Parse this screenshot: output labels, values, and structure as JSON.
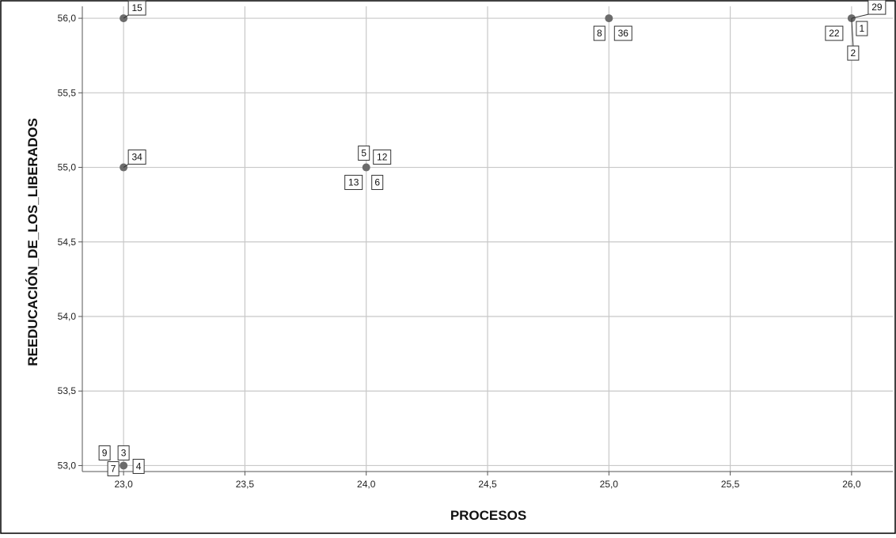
{
  "chart_data": {
    "type": "scatter",
    "title": "",
    "xlabel": "PROCESOS",
    "ylabel": "REEDUCACIÓN_DE_LOS_LIBERADOS",
    "xlim": [
      22.83,
      26.17
    ],
    "ylim": [
      52.96,
      56.08
    ],
    "x_ticks": [
      23.0,
      23.5,
      24.0,
      24.5,
      25.0,
      25.5,
      26.0
    ],
    "x_tick_labels": [
      "23,0",
      "23,5",
      "24,0",
      "24,5",
      "25,0",
      "25,5",
      "26,0"
    ],
    "y_ticks": [
      53.0,
      53.5,
      54.0,
      54.5,
      55.0,
      55.5,
      56.0
    ],
    "y_tick_labels": [
      "53,0",
      "53,5",
      "54,0",
      "54,5",
      "55,0",
      "55,5",
      "56,0"
    ],
    "grid": true,
    "points": [
      {
        "x": 23,
        "y": 56,
        "labels": [
          "15"
        ]
      },
      {
        "x": 23,
        "y": 55,
        "labels": [
          "34"
        ]
      },
      {
        "x": 23,
        "y": 53,
        "labels": [
          "9",
          "3",
          "7",
          "4"
        ]
      },
      {
        "x": 24,
        "y": 55,
        "labels": [
          "5",
          "12",
          "13",
          "6"
        ]
      },
      {
        "x": 25,
        "y": 56,
        "labels": [
          "8",
          "36"
        ]
      },
      {
        "x": 26,
        "y": 56,
        "labels": [
          "29",
          "22",
          "1",
          "2"
        ]
      }
    ],
    "colors": {
      "marker": "#6b6b6b",
      "grid": "#c8c8c8",
      "axis": "#555555"
    }
  }
}
